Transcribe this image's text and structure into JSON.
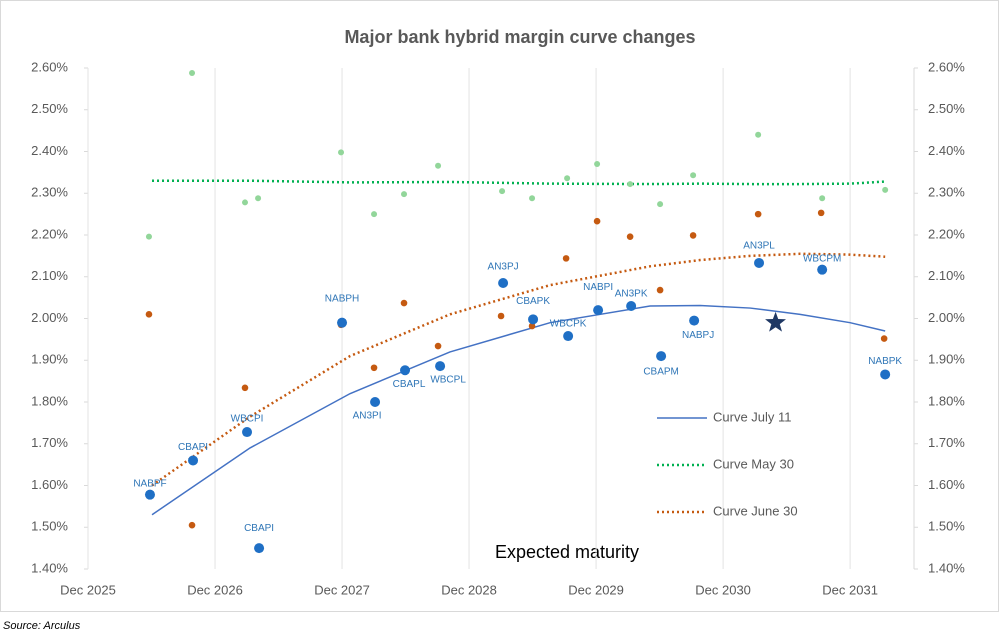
{
  "chart_data": {
    "type": "scatter",
    "title": "Major bank hybrid margin curve changes",
    "annotation": "Expected maturity",
    "source": "Source: Arculus",
    "grid": "x",
    "legend": "right",
    "xlim": [
      2025.917,
      2032.42
    ],
    "xticks": [
      {
        "value": 2025.917,
        "label": "Dec 2025"
      },
      {
        "value": 2026.917,
        "label": "Dec 2026"
      },
      {
        "value": 2027.917,
        "label": "Dec 2027"
      },
      {
        "value": 2028.917,
        "label": "Dec 2028"
      },
      {
        "value": 2029.917,
        "label": "Dec 2029"
      },
      {
        "value": 2030.917,
        "label": "Dec 2030"
      },
      {
        "value": 2031.917,
        "label": "Dec 2031"
      }
    ],
    "ylim": [
      1.4,
      2.6
    ],
    "yticks": [
      {
        "value": 1.4,
        "label": "1.40%"
      },
      {
        "value": 1.5,
        "label": "1.50%"
      },
      {
        "value": 1.6,
        "label": "1.60%"
      },
      {
        "value": 1.7,
        "label": "1.70%"
      },
      {
        "value": 1.8,
        "label": "1.80%"
      },
      {
        "value": 1.9,
        "label": "1.90%"
      },
      {
        "value": 2.0,
        "label": "2.00%"
      },
      {
        "value": 2.1,
        "label": "2.10%"
      },
      {
        "value": 2.2,
        "label": "2.20%"
      },
      {
        "value": 2.3,
        "label": "2.30%"
      },
      {
        "value": 2.4,
        "label": "2.40%"
      },
      {
        "value": 2.5,
        "label": "2.50%"
      },
      {
        "value": 2.6,
        "label": "2.60%"
      }
    ],
    "y2lim": [
      1.4,
      2.6
    ],
    "y2ticks": [
      {
        "value": 1.4,
        "label": "1.40%"
      },
      {
        "value": 1.5,
        "label": "1.50%"
      },
      {
        "value": 1.6,
        "label": "1.60%"
      },
      {
        "value": 1.7,
        "label": "1.70%"
      },
      {
        "value": 1.8,
        "label": "1.80%"
      },
      {
        "value": 1.9,
        "label": "1.90%"
      },
      {
        "value": 2.0,
        "label": "2.00%"
      },
      {
        "value": 2.1,
        "label": "2.10%"
      },
      {
        "value": 2.2,
        "label": "2.20%"
      },
      {
        "value": 2.3,
        "label": "2.30%"
      },
      {
        "value": 2.4,
        "label": "2.40%"
      },
      {
        "value": 2.5,
        "label": "2.50%"
      },
      {
        "value": 2.6,
        "label": "2.60%"
      }
    ],
    "series": [
      {
        "name": "Curve July 11",
        "mode": "line",
        "dash": false,
        "color": "#4472c4",
        "x": [
          2026.421,
          2027.193,
          2027.98,
          2028.767,
          2029.555,
          2030.342,
          2030.736,
          2031.13,
          2031.523,
          2031.917,
          2032.193
        ],
        "values": [
          1.53,
          1.69,
          1.82,
          1.92,
          1.99,
          2.03,
          2.031,
          2.025,
          2.01,
          1.99,
          1.97
        ]
      },
      {
        "name": "Curve May 30",
        "mode": "line",
        "dash": true,
        "color": "#00b050",
        "x": [
          2026.421,
          2027.193,
          2027.98,
          2028.767,
          2029.555,
          2030.342,
          2030.736,
          2031.13,
          2031.523,
          2031.917,
          2032.193
        ],
        "values": [
          2.33,
          2.33,
          2.326,
          2.327,
          2.323,
          2.322,
          2.323,
          2.322,
          2.322,
          2.323,
          2.328
        ]
      },
      {
        "name": "Curve June 30",
        "mode": "line",
        "dash": true,
        "color": "#c55a11",
        "x": [
          2026.421,
          2027.193,
          2027.98,
          2028.767,
          2029.555,
          2030.342,
          2030.736,
          2031.13,
          2031.523,
          2031.917,
          2032.193
        ],
        "values": [
          1.6,
          1.765,
          1.91,
          2.01,
          2.08,
          2.125,
          2.14,
          2.15,
          2.155,
          2.153,
          2.148
        ]
      },
      {
        "mode": "markers",
        "color": "#92d69a",
        "size": 3,
        "x": [
          2026.397,
          2026.736,
          2027.153,
          2027.256,
          2027.909,
          2028.169,
          2028.405,
          2028.673,
          2029.177,
          2029.413,
          2029.689,
          2029.925,
          2030.185,
          2030.421,
          2030.681,
          2031.193,
          2031.697,
          2032.193
        ],
        "values": [
          2.196,
          2.588,
          2.278,
          2.288,
          2.398,
          2.25,
          2.298,
          2.366,
          2.305,
          2.288,
          2.336,
          2.37,
          2.322,
          2.274,
          2.343,
          2.44,
          2.288,
          2.308
        ]
      },
      {
        "mode": "markers",
        "color": "#c55a11",
        "size": 3.3,
        "x": [
          2026.397,
          2026.736,
          2027.153,
          2027.909,
          2028.169,
          2028.405,
          2028.673,
          2029.169,
          2029.413,
          2029.681,
          2029.925,
          2030.185,
          2030.421,
          2030.681,
          2031.193,
          2031.689,
          2032.185
        ],
        "values": [
          2.01,
          1.505,
          1.834,
          1.985,
          1.882,
          2.037,
          1.934,
          2.006,
          1.982,
          2.144,
          2.233,
          2.196,
          2.068,
          2.199,
          2.25,
          2.253,
          1.952
        ]
      },
      {
        "mode": "markers",
        "color": "#1f6fc5",
        "size": 5,
        "x": [
          2026.405,
          2026.744,
          2027.264,
          2027.169,
          2027.917,
          2028.177,
          2028.413,
          2028.689,
          2029.185,
          2029.421,
          2029.697,
          2029.933,
          2030.193,
          2030.429,
          2030.689,
          2031.2,
          2031.697,
          2032.193
        ],
        "values": [
          1.578,
          1.66,
          1.45,
          1.728,
          1.99,
          1.8,
          1.876,
          1.886,
          2.085,
          1.998,
          1.958,
          2.02,
          2.03,
          1.91,
          1.995,
          2.133,
          2.117,
          1.866
        ],
        "labels": [
          "NABPF",
          "CBAPI",
          "CBAPI",
          "WBCPI",
          "NABPH",
          "AN3PI",
          "CBAPL",
          "WBCPL",
          "AN3PJ",
          "CBAPK",
          "WBCPK",
          "NABPI",
          "AN3PK",
          "CBAPM",
          "NABPJ",
          "AN3PL",
          "WBCPM",
          "NABPK"
        ]
      }
    ],
    "star": {
      "x": 2031.33,
      "y": 1.99,
      "color": "#1f3864"
    }
  }
}
